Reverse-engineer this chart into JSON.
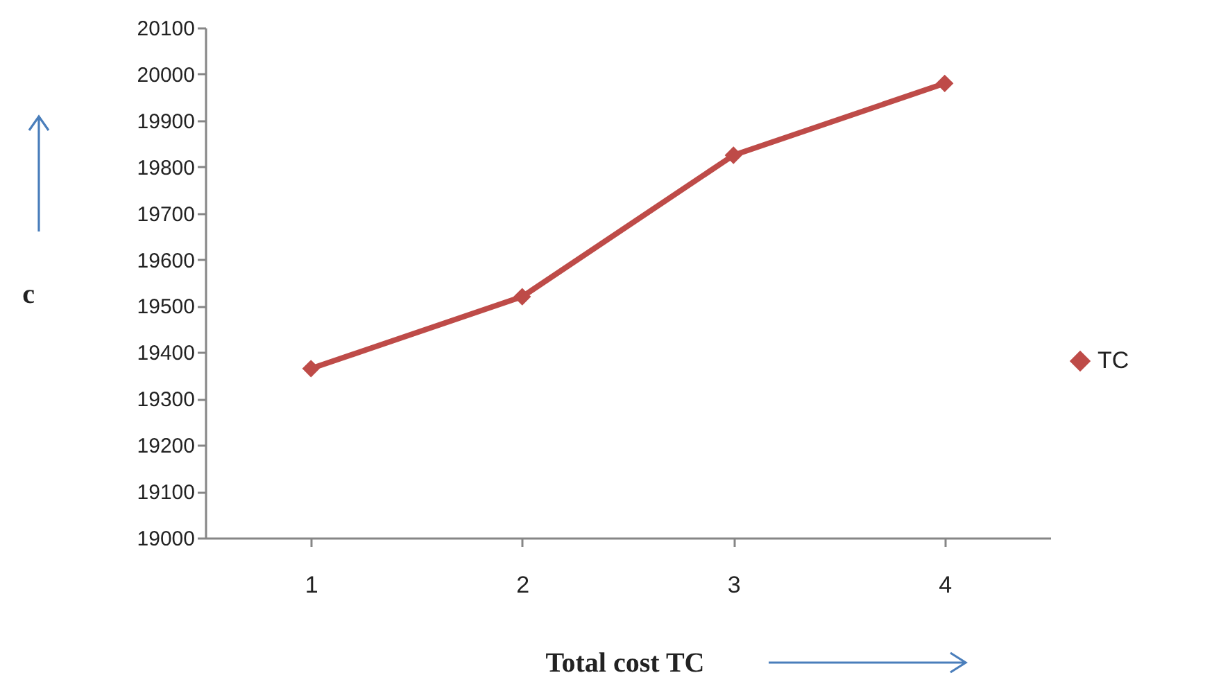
{
  "chart_data": {
    "type": "line",
    "xlabel": "Total cost TC",
    "ylabel": "c",
    "categories": [
      "1",
      "2",
      "3",
      "4"
    ],
    "series": [
      {
        "name": "TC",
        "color": "#be4b48",
        "values": [
          19365,
          19520,
          19825,
          19980
        ]
      }
    ],
    "ylim": [
      19000,
      20100
    ],
    "yticks": [
      19000,
      19100,
      19200,
      19300,
      19400,
      19500,
      19600,
      19700,
      19800,
      19900,
      20000,
      20100
    ],
    "grid": false,
    "legend": "right",
    "marker": "diamond",
    "line_style": "solid"
  }
}
